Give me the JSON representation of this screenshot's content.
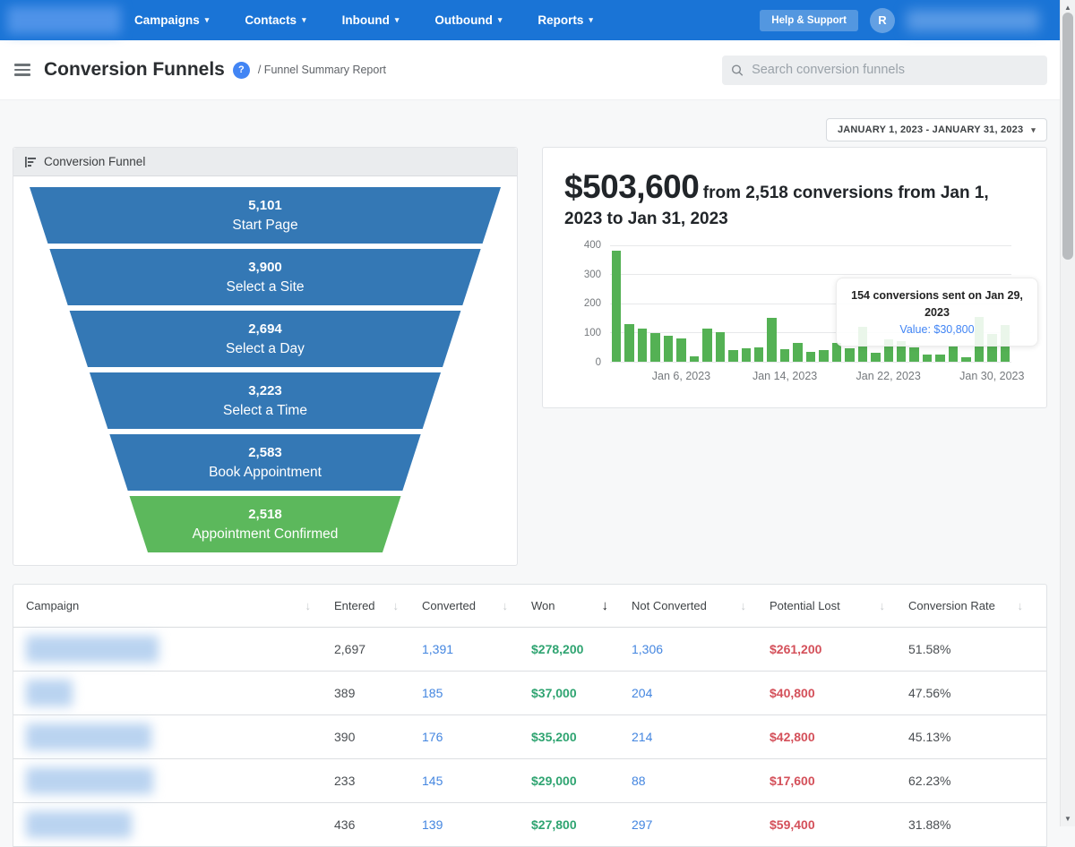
{
  "colors": {
    "nav_blue": "#1a74d6",
    "funnel_blue": "#3478b5",
    "funnel_green": "#5cb85c",
    "bar_green": "#54b154",
    "won_green": "#2fa471",
    "lost_red": "#d4505a",
    "link_blue": "#4486e0",
    "tooltip_value_blue": "#4285f4",
    "help_icon_blue": "#4285f4"
  },
  "nav": {
    "items": [
      {
        "label": "Campaigns"
      },
      {
        "label": "Contacts"
      },
      {
        "label": "Inbound"
      },
      {
        "label": "Outbound"
      },
      {
        "label": "Reports"
      }
    ],
    "help_button": "Help & Support",
    "avatar_initial": "R"
  },
  "header": {
    "title": "Conversion Funnels",
    "breadcrumb": "/ Funnel Summary Report",
    "search_placeholder": "Search conversion funnels"
  },
  "date_range": "JANUARY 1, 2023 - JANUARY 31, 2023",
  "funnel": {
    "card_title": "Conversion Funnel",
    "stages": [
      {
        "value": "5,101",
        "label": "Start Page",
        "color": "#3478b5"
      },
      {
        "value": "3,900",
        "label": "Select a Site",
        "color": "#3478b5"
      },
      {
        "value": "2,694",
        "label": "Select a Day",
        "color": "#3478b5"
      },
      {
        "value": "3,223",
        "label": "Select a Time",
        "color": "#3478b5"
      },
      {
        "value": "2,583",
        "label": "Book Appointment",
        "color": "#3478b5"
      },
      {
        "value": "2,518",
        "label": "Appointment Confirmed",
        "color": "#5cb85c"
      }
    ]
  },
  "summary": {
    "amount": "$503,600",
    "subtitle": "from 2,518 conversions from Jan 1, 2023 to Jan 31, 2023"
  },
  "chart_data": {
    "type": "bar",
    "title": "$503,600 from 2,518 conversions from Jan 1, 2023 to Jan 31, 2023",
    "xlabel": "",
    "ylabel": "",
    "x_unit": "day of January 2023",
    "categories": [
      "Jan 1",
      "Jan 2",
      "Jan 3",
      "Jan 4",
      "Jan 5",
      "Jan 6",
      "Jan 7",
      "Jan 8",
      "Jan 9",
      "Jan 10",
      "Jan 11",
      "Jan 12",
      "Jan 13",
      "Jan 14",
      "Jan 15",
      "Jan 16",
      "Jan 17",
      "Jan 18",
      "Jan 19",
      "Jan 20",
      "Jan 21",
      "Jan 22",
      "Jan 23",
      "Jan 24",
      "Jan 25",
      "Jan 26",
      "Jan 27",
      "Jan 28",
      "Jan 29",
      "Jan 30",
      "Jan 31"
    ],
    "values": [
      380,
      130,
      112,
      98,
      90,
      78,
      18,
      112,
      100,
      38,
      46,
      50,
      150,
      42,
      65,
      34,
      40,
      64,
      46,
      120,
      30,
      75,
      70,
      50,
      25,
      25,
      54,
      15,
      154,
      95,
      125
    ],
    "ylim": [
      0,
      400
    ],
    "yticks": [
      400,
      300,
      200,
      100,
      0
    ],
    "xticks": [
      {
        "day": 6,
        "label": "Jan 6, 2023"
      },
      {
        "day": 14,
        "label": "Jan 14, 2023"
      },
      {
        "day": 22,
        "label": "Jan 22, 2023"
      },
      {
        "day": 30,
        "label": "Jan 30, 2023"
      }
    ],
    "bar_color": "#54b154",
    "grid": true,
    "legend": false,
    "highlight_day": 29,
    "tooltip": {
      "title": "154 conversions sent on Jan 29, 2023",
      "value": "Value: $30,800"
    }
  },
  "table": {
    "columns": [
      {
        "label": "Campaign",
        "sorted": false
      },
      {
        "label": "Entered",
        "sorted": false
      },
      {
        "label": "Converted",
        "sorted": false
      },
      {
        "label": "Won",
        "sorted": true
      },
      {
        "label": "Not Converted",
        "sorted": false
      },
      {
        "label": "Potential Lost",
        "sorted": false
      },
      {
        "label": "Conversion Rate",
        "sorted": false
      }
    ],
    "rows": [
      {
        "name_blur_width": 148,
        "entered": "2,697",
        "converted": "1,391",
        "won": "$278,200",
        "not_converted": "1,306",
        "potential_lost": "$261,200",
        "conversion_rate": "51.58%"
      },
      {
        "name_blur_width": 52,
        "entered": "389",
        "converted": "185",
        "won": "$37,000",
        "not_converted": "204",
        "potential_lost": "$40,800",
        "conversion_rate": "47.56%"
      },
      {
        "name_blur_width": 140,
        "entered": "390",
        "converted": "176",
        "won": "$35,200",
        "not_converted": "214",
        "potential_lost": "$42,800",
        "conversion_rate": "45.13%"
      },
      {
        "name_blur_width": 142,
        "entered": "233",
        "converted": "145",
        "won": "$29,000",
        "not_converted": "88",
        "potential_lost": "$17,600",
        "conversion_rate": "62.23%"
      },
      {
        "name_blur_width": 118,
        "entered": "436",
        "converted": "139",
        "won": "$27,800",
        "not_converted": "297",
        "potential_lost": "$59,400",
        "conversion_rate": "31.88%"
      }
    ]
  }
}
